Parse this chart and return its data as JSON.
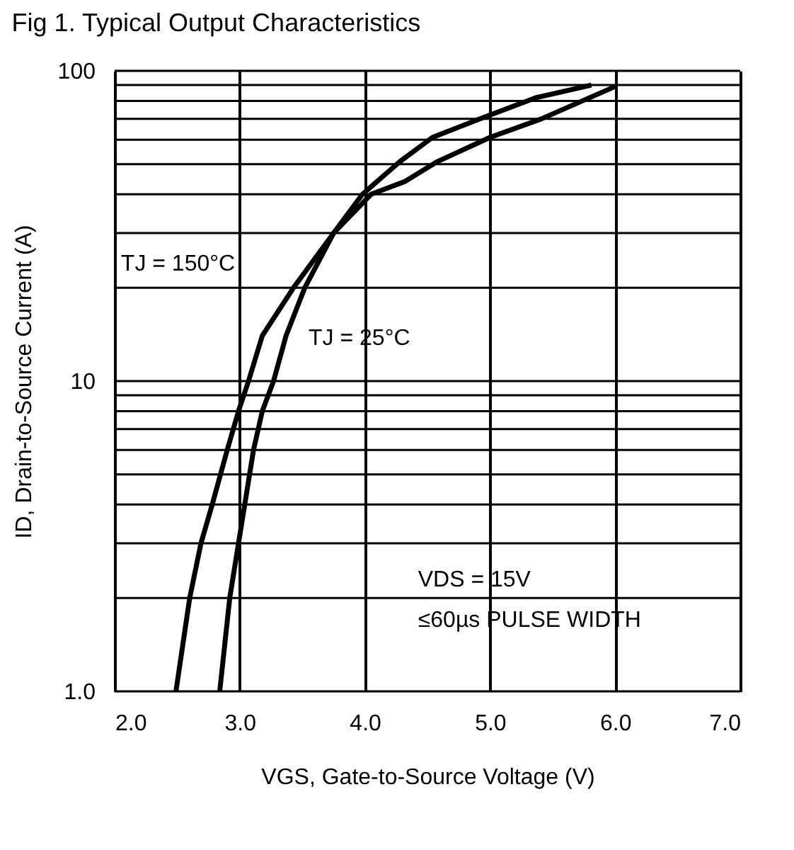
{
  "chart_data": {
    "type": "line",
    "title": "Fig 1.  Typical Output Characteristics",
    "xlabel": "VGS, Gate-to-Source Voltage (V)",
    "ylabel": "ID, Drain-to-Source Current (A)",
    "series": [
      {
        "color": "#000000",
        "x": [
          2.49,
          2.6,
          2.69,
          2.78,
          2.9,
          2.99,
          3.07,
          3.18,
          3.43,
          3.75,
          4.05,
          4.32,
          4.58,
          5.0,
          5.41,
          6.0
        ],
        "values": [
          1,
          2,
          3,
          4,
          6,
          8,
          10,
          14,
          20,
          30,
          40,
          44,
          51,
          61,
          70,
          89
        ]
      },
      {
        "color": "#000000",
        "x": [
          2.84,
          2.92,
          2.99,
          3.04,
          3.11,
          3.18,
          3.27,
          3.37,
          3.52,
          3.75,
          3.98,
          4.28,
          4.54,
          4.92,
          5.37,
          5.81
        ],
        "values": [
          1,
          2,
          3,
          4,
          6,
          8,
          10,
          14,
          20,
          30,
          40,
          51,
          61,
          70,
          82,
          90
        ]
      }
    ],
    "xlim": [
      2,
      7
    ],
    "xticks": [
      {
        "value": 2,
        "label": "2.0"
      },
      {
        "value": 3,
        "label": "3.0"
      },
      {
        "value": 4,
        "label": "4.0"
      },
      {
        "value": 5,
        "label": "5.0"
      },
      {
        "value": 6,
        "label": "6.0"
      },
      {
        "value": 7,
        "label": "7.0"
      }
    ],
    "ylim": [
      1,
      100
    ],
    "yticks": [
      {
        "value": 1,
        "label": "1.0"
      },
      {
        "value": 10,
        "label": "10"
      },
      {
        "value": 100,
        "label": "100"
      }
    ],
    "log": "y",
    "grid": true,
    "marker": "none",
    "line_style": "solid",
    "annotations": [
      "TJ = 150°C",
      "TJ = 25°C",
      "VDS = 15V",
      "≤60µs PULSE WIDTH"
    ]
  }
}
